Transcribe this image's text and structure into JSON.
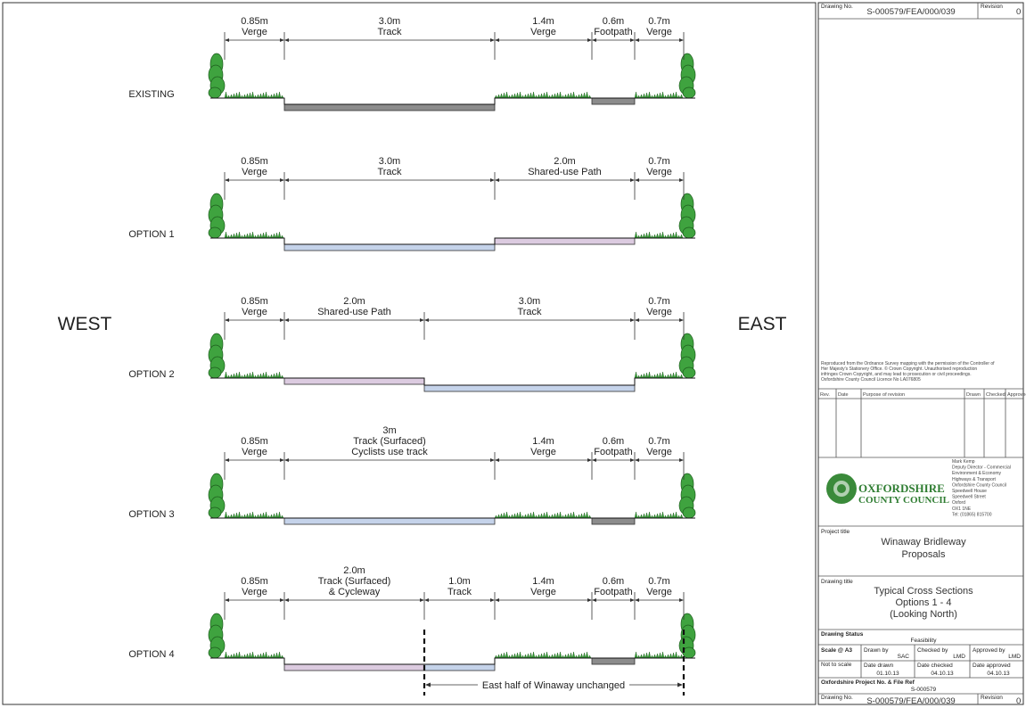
{
  "sides": {
    "west": "WEST",
    "east": "EAST"
  },
  "rows": [
    {
      "label": "EXISTING",
      "segments": [
        {
          "width": "0.85m",
          "name": "Verge",
          "color": "#2e9a2e"
        },
        {
          "width": "3.0m",
          "name": "Track",
          "color": "#8c8c8c"
        },
        {
          "width": "1.4m",
          "name": "Verge",
          "color": "#2e9a2e"
        },
        {
          "width": "0.6m",
          "name": "Footpath",
          "color": "#8c8c8c"
        },
        {
          "width": "0.7m",
          "name": "Verge",
          "color": "#2e9a2e"
        }
      ]
    },
    {
      "label": "OPTION 1",
      "segments": [
        {
          "width": "0.85m",
          "name": "Verge",
          "color": "#2e9a2e"
        },
        {
          "width": "3.0m",
          "name": "Track",
          "color": "#c5d3ea"
        },
        {
          "width": "2.0m",
          "name": "Shared-use Path",
          "color": "#dccbe0"
        },
        {
          "width": "0.7m",
          "name": "Verge",
          "color": "#2e9a2e"
        }
      ]
    },
    {
      "label": "OPTION 2",
      "segments": [
        {
          "width": "0.85m",
          "name": "Verge",
          "color": "#2e9a2e"
        },
        {
          "width": "2.0m",
          "name": "Shared-use Path",
          "color": "#dccbe0"
        },
        {
          "width": "3.0m",
          "name": "Track",
          "color": "#c5d3ea"
        },
        {
          "width": "0.7m",
          "name": "Verge",
          "color": "#2e9a2e"
        }
      ]
    },
    {
      "label": "OPTION 3",
      "segments": [
        {
          "width": "0.85m",
          "name": "Verge",
          "color": "#2e9a2e"
        },
        {
          "width": "3m",
          "name": [
            "Track (Surfaced)",
            "Cyclists use track"
          ],
          "color": "#c5d3ea"
        },
        {
          "width": "1.4m",
          "name": "Verge",
          "color": "#2e9a2e"
        },
        {
          "width": "0.6m",
          "name": "Footpath",
          "color": "#8c8c8c"
        },
        {
          "width": "0.7m",
          "name": "Verge",
          "color": "#2e9a2e"
        }
      ]
    },
    {
      "label": "OPTION 4",
      "annotation": "East half of Winaway unchanged",
      "segments": [
        {
          "width": "0.85m",
          "name": "Verge",
          "color": "#2e9a2e"
        },
        {
          "width": "2.0m",
          "name": [
            "Track (Surfaced)",
            "& Cycleway"
          ],
          "color": "#dccbe0"
        },
        {
          "width": "1.0m",
          "name": "Track",
          "color": "#c5d3ea"
        },
        {
          "width": "1.4m",
          "name": "Verge",
          "color": "#2e9a2e"
        },
        {
          "width": "0.6m",
          "name": "Footpath",
          "color": "#8c8c8c"
        },
        {
          "width": "0.7m",
          "name": "Verge",
          "color": "#2e9a2e"
        }
      ]
    }
  ],
  "title_block": {
    "drawing_no_label": "Drawing No.",
    "drawing_no": "S-000579/FEA/000/039",
    "revision_label": "Revision",
    "revision": "0",
    "copyright": [
      "Reproduced from the Ordnance Survey mapping with the permission of the Controller of",
      "Her Majesty's Stationery Office. © Crown Copyright. Unauthorised reproduction",
      "infringes Crown Copyright, and may lead to prosecution or civil proceedings.",
      "Oxfordshire County Council Licence No LA076805"
    ],
    "revision_table": {
      "headers": [
        "Rev.",
        "Date",
        "Purpose of revision",
        "Drawn",
        "Checked",
        "Approved"
      ]
    },
    "council": {
      "name": [
        "OXFORDSHIRE",
        "COUNTY COUNCIL"
      ],
      "address": [
        "Mark Kemp",
        "Deputy Director - Commercial",
        "Environment & Economy",
        "Highways & Transport",
        "Oxfordshire County Council",
        "Speedwell House",
        "Speedwell Street",
        "Oxford",
        "OX1 1NE",
        "Tel: (01865) 815700"
      ]
    },
    "project_title_label": "Project title",
    "project_title": [
      "Winaway Bridleway",
      "Proposals"
    ],
    "drawing_title_label": "Drawing title",
    "drawing_title": [
      "Typical Cross Sections",
      "Options 1 - 4",
      "(Looking North)"
    ],
    "status_label": "Drawing Status",
    "status": "Feasibility",
    "scale_label": "Scale @ A3",
    "scale": "Not to scale",
    "drawn_by_label": "Drawn by",
    "drawn_by": "SAC",
    "checked_by_label": "Checked by",
    "checked_by": "LMD",
    "approved_by_label": "Approved by",
    "approved_by": "LMD",
    "date_drawn_label": "Date drawn",
    "date_drawn": "01.10.13",
    "date_checked_label": "Date checked",
    "date_checked": "04.10.13",
    "date_approved_label": "Date approved",
    "date_approved": "04.10.13",
    "file_ref_label": "Oxfordshire Project No. & File Ref",
    "file_ref": "S-000579"
  }
}
